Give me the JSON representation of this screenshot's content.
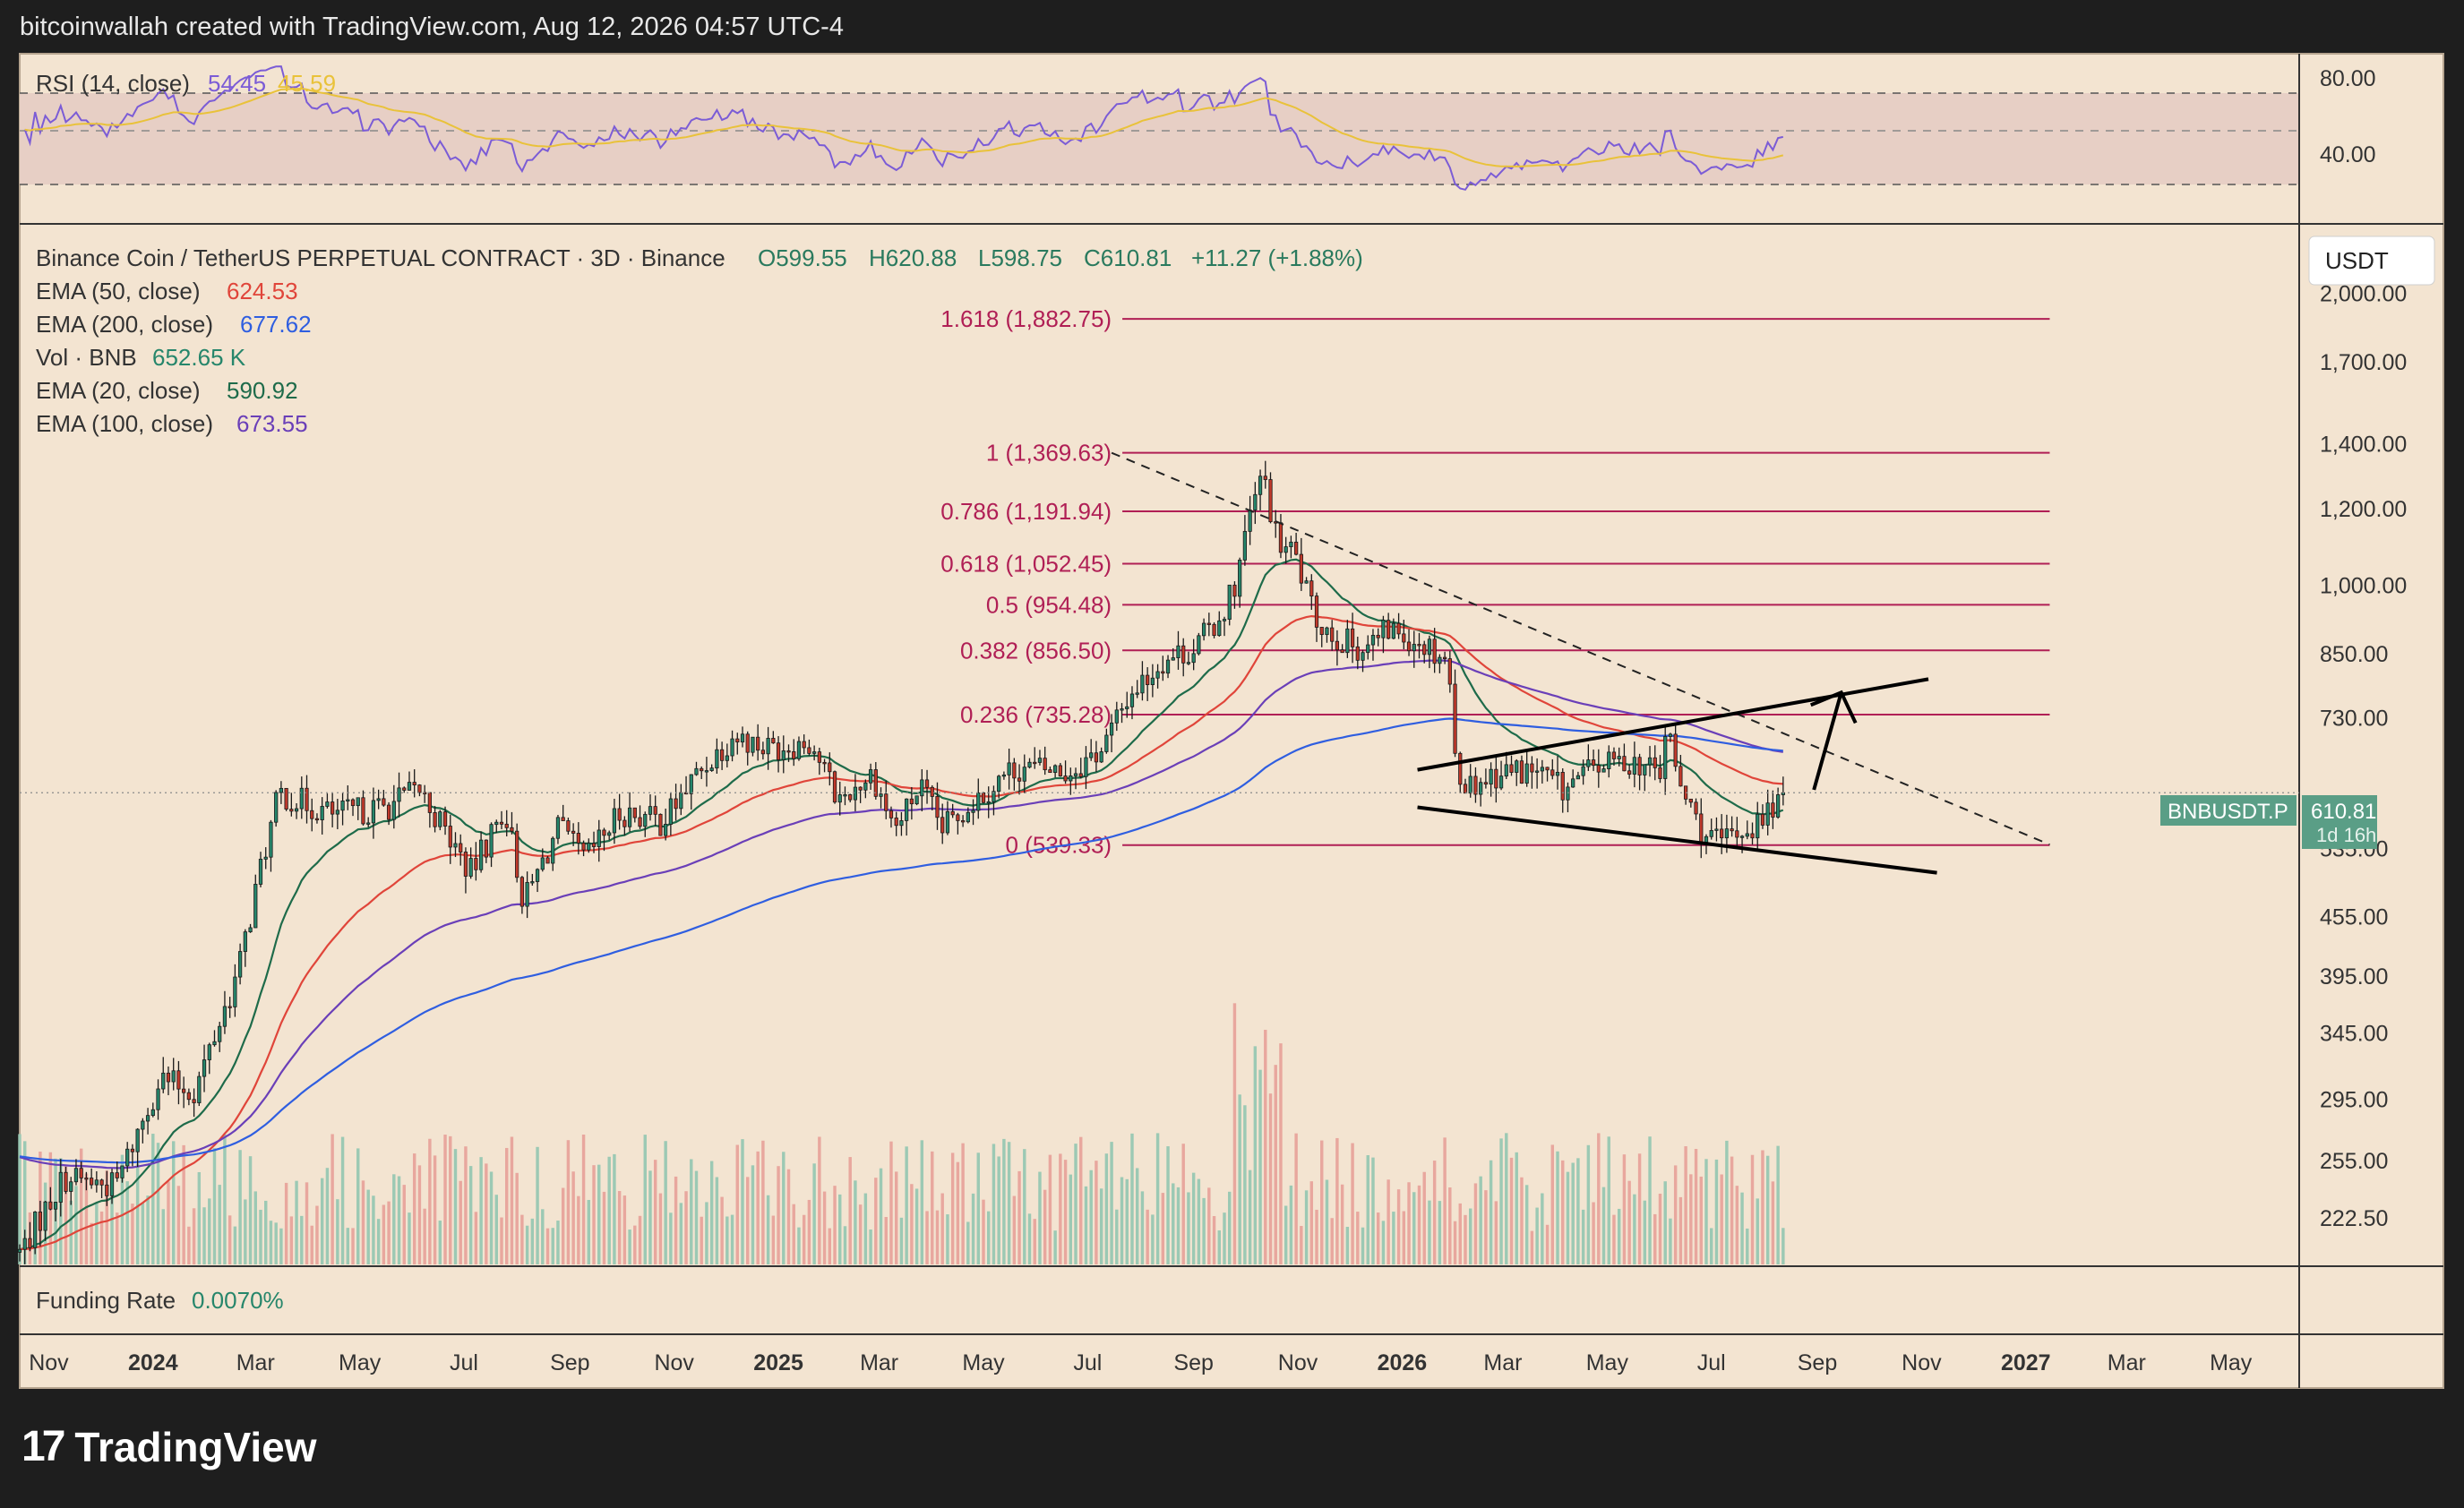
{
  "header": {
    "text": "bitcoinwallah created with TradingView.com, Aug 12, 2026 04:57 UTC-4"
  },
  "brand": {
    "logo_glyph": "17",
    "name": "TradingView"
  },
  "colors": {
    "background": "#f3e4d1",
    "frame": "#1e1e1e",
    "up": "#26866b",
    "down": "#c0392b",
    "ema50": "#e0453a",
    "ema200": "#2f5ee0",
    "ema20": "#1e6b4a",
    "ema100": "#6a3fb8",
    "rsi": "#7b5cd6",
    "rsi_ma": "#e9c23a",
    "fib": "#b01f55",
    "price_tag": "#5a9e86"
  },
  "rsi_panel": {
    "label": "RSI (14, close)",
    "value": "54.45",
    "ma_value": "45.59",
    "levels": [
      "80.00",
      "40.00"
    ]
  },
  "legend": {
    "title": "Binance Coin / TetherUS PERPETUAL CONTRACT · 3D · Binance",
    "ohlc": {
      "open": "O599.55",
      "high": "H620.88",
      "low": "L598.75",
      "close": "C610.81",
      "change": "+11.27 (+1.88%)"
    },
    "indicators": [
      {
        "name": "EMA (50, close)",
        "value": "624.53",
        "color": "#e0453a"
      },
      {
        "name": "EMA (200, close)",
        "value": "677.62",
        "color": "#2f5ee0"
      },
      {
        "name": "Vol · BNB",
        "value": "652.65 K",
        "color": "#26866b"
      },
      {
        "name": "EMA (20, close)",
        "value": "590.92",
        "color": "#1e6b4a"
      },
      {
        "name": "EMA (100, close)",
        "value": "673.55",
        "color": "#6a3fb8"
      }
    ]
  },
  "currency_button": "USDT",
  "price_tag": {
    "symbol": "BNBUSDT.P",
    "price": "610.81",
    "countdown": "1d 16h"
  },
  "funding": {
    "label": "Funding Rate",
    "value": "0.0070%"
  },
  "chart_data": {
    "type": "candlestick",
    "scale": "log",
    "ylim": [
      200,
      2300
    ],
    "y_ticks": [
      2000,
      1700,
      1400,
      1200,
      1000,
      850,
      730,
      535,
      455,
      395,
      345,
      295,
      255,
      222.5
    ],
    "y_tick_labels": [
      "2,000.00",
      "1,700.00",
      "1,400.00",
      "1,200.00",
      "1,000.00",
      "850.00",
      "730.00",
      "535.00",
      "455.00",
      "395.00",
      "345.00",
      "295.00",
      "255.00",
      "222.50"
    ],
    "x_start": "2023-10-15",
    "x_end": "2027-06-10",
    "x_ticks": [
      {
        "date": "2023-11-01",
        "label": "Nov",
        "bold": false
      },
      {
        "date": "2024-01-01",
        "label": "2024",
        "bold": true
      },
      {
        "date": "2024-03-01",
        "label": "Mar",
        "bold": false
      },
      {
        "date": "2024-05-01",
        "label": "May",
        "bold": false
      },
      {
        "date": "2024-07-01",
        "label": "Jul",
        "bold": false
      },
      {
        "date": "2024-09-01",
        "label": "Sep",
        "bold": false
      },
      {
        "date": "2024-11-01",
        "label": "Nov",
        "bold": false
      },
      {
        "date": "2025-01-01",
        "label": "2025",
        "bold": true
      },
      {
        "date": "2025-03-01",
        "label": "Mar",
        "bold": false
      },
      {
        "date": "2025-05-01",
        "label": "May",
        "bold": false
      },
      {
        "date": "2025-07-01",
        "label": "Jul",
        "bold": false
      },
      {
        "date": "2025-09-01",
        "label": "Sep",
        "bold": false
      },
      {
        "date": "2025-11-01",
        "label": "Nov",
        "bold": false
      },
      {
        "date": "2026-01-01",
        "label": "2026",
        "bold": true
      },
      {
        "date": "2026-03-01",
        "label": "Mar",
        "bold": false
      },
      {
        "date": "2026-05-01",
        "label": "May",
        "bold": false
      },
      {
        "date": "2026-07-01",
        "label": "Jul",
        "bold": false
      },
      {
        "date": "2026-09-01",
        "label": "Sep",
        "bold": false
      },
      {
        "date": "2026-11-01",
        "label": "Nov",
        "bold": false
      },
      {
        "date": "2027-01-01",
        "label": "2027",
        "bold": true
      },
      {
        "date": "2027-03-01",
        "label": "Mar",
        "bold": false
      },
      {
        "date": "2027-05-01",
        "label": "May",
        "bold": false
      }
    ],
    "candle_interval_days": 3,
    "price_path": [
      [
        "2023-10-15",
        205
      ],
      [
        "2023-11-10",
        245
      ],
      [
        "2023-12-10",
        240
      ],
      [
        "2024-01-05",
        310
      ],
      [
        "2024-01-25",
        300
      ],
      [
        "2024-02-20",
        400
      ],
      [
        "2024-03-05",
        520
      ],
      [
        "2024-03-15",
        610
      ],
      [
        "2024-04-15",
        580
      ],
      [
        "2024-05-15",
        590
      ],
      [
        "2024-06-05",
        615
      ],
      [
        "2024-07-05",
        505
      ],
      [
        "2024-07-25",
        590
      ],
      [
        "2024-08-05",
        470
      ],
      [
        "2024-08-25",
        560
      ],
      [
        "2024-09-10",
        520
      ],
      [
        "2024-10-01",
        585
      ],
      [
        "2024-10-25",
        570
      ],
      [
        "2024-11-15",
        640
      ],
      [
        "2024-12-05",
        700
      ],
      [
        "2024-12-25",
        680
      ],
      [
        "2025-01-20",
        690
      ],
      [
        "2025-02-05",
        600
      ],
      [
        "2025-02-25",
        640
      ],
      [
        "2025-03-10",
        560
      ],
      [
        "2025-03-25",
        620
      ],
      [
        "2025-04-07",
        560
      ],
      [
        "2025-04-25",
        600
      ],
      [
        "2025-05-20",
        650
      ],
      [
        "2025-06-20",
        640
      ],
      [
        "2025-07-10",
        680
      ],
      [
        "2025-07-25",
        770
      ],
      [
        "2025-08-15",
        840
      ],
      [
        "2025-09-01",
        860
      ],
      [
        "2025-09-15",
        920
      ],
      [
        "2025-09-25",
        1000
      ],
      [
        "2025-10-05",
        1200
      ],
      [
        "2025-10-12",
        1300
      ],
      [
        "2025-10-20",
        1100
      ],
      [
        "2025-10-30",
        1080
      ],
      [
        "2025-11-10",
        930
      ],
      [
        "2025-11-25",
        880
      ],
      [
        "2025-12-10",
        860
      ],
      [
        "2025-12-25",
        900
      ],
      [
        "2026-01-10",
        880
      ],
      [
        "2026-01-28",
        840
      ],
      [
        "2026-02-01",
        660
      ],
      [
        "2026-02-08",
        620
      ],
      [
        "2026-02-25",
        640
      ],
      [
        "2026-03-20",
        645
      ],
      [
        "2026-04-05",
        615
      ],
      [
        "2026-04-25",
        650
      ],
      [
        "2026-05-15",
        660
      ],
      [
        "2026-06-01",
        640
      ],
      [
        "2026-06-05",
        720
      ],
      [
        "2026-06-12",
        620
      ],
      [
        "2026-06-25",
        560
      ],
      [
        "2026-07-05",
        540
      ],
      [
        "2026-07-15",
        555
      ],
      [
        "2026-07-30",
        570
      ],
      [
        "2026-08-12",
        610.81
      ]
    ],
    "fib_levels": [
      {
        "ratio": "1.618",
        "price": 1882.75,
        "label": "1.618 (1,882.75)"
      },
      {
        "ratio": "1",
        "price": 1369.63,
        "label": "1 (1,369.63)"
      },
      {
        "ratio": "0.786",
        "price": 1191.94,
        "label": "0.786 (1,191.94)"
      },
      {
        "ratio": "0.618",
        "price": 1052.45,
        "label": "0.618 (1,052.45)"
      },
      {
        "ratio": "0.5",
        "price": 954.48,
        "label": "0.5 (954.48)"
      },
      {
        "ratio": "0.382",
        "price": 856.5,
        "label": "0.382 (856.50)"
      },
      {
        "ratio": "0.236",
        "price": 735.28,
        "label": "0.236 (735.28)"
      },
      {
        "ratio": "0",
        "price": 539.33,
        "label": "0 (539.33)"
      }
    ],
    "fib_range": [
      "2025-07-15",
      "2027-01-15"
    ],
    "last_price": 610.81,
    "annotations": {
      "dashed_trendline": [
        [
          "2025-07-15",
          1369.63
        ],
        [
          "2027-01-15",
          540
        ]
      ],
      "channel_upper": [
        [
          "2026-01-10",
          645
        ],
        [
          "2026-11-05",
          800
        ]
      ],
      "channel_lower": [
        [
          "2026-01-10",
          590
        ],
        [
          "2026-11-10",
          505
        ]
      ],
      "breakout_arrow": [
        [
          "2026-08-30",
          615
        ],
        [
          "2026-09-15",
          775
        ]
      ]
    }
  }
}
